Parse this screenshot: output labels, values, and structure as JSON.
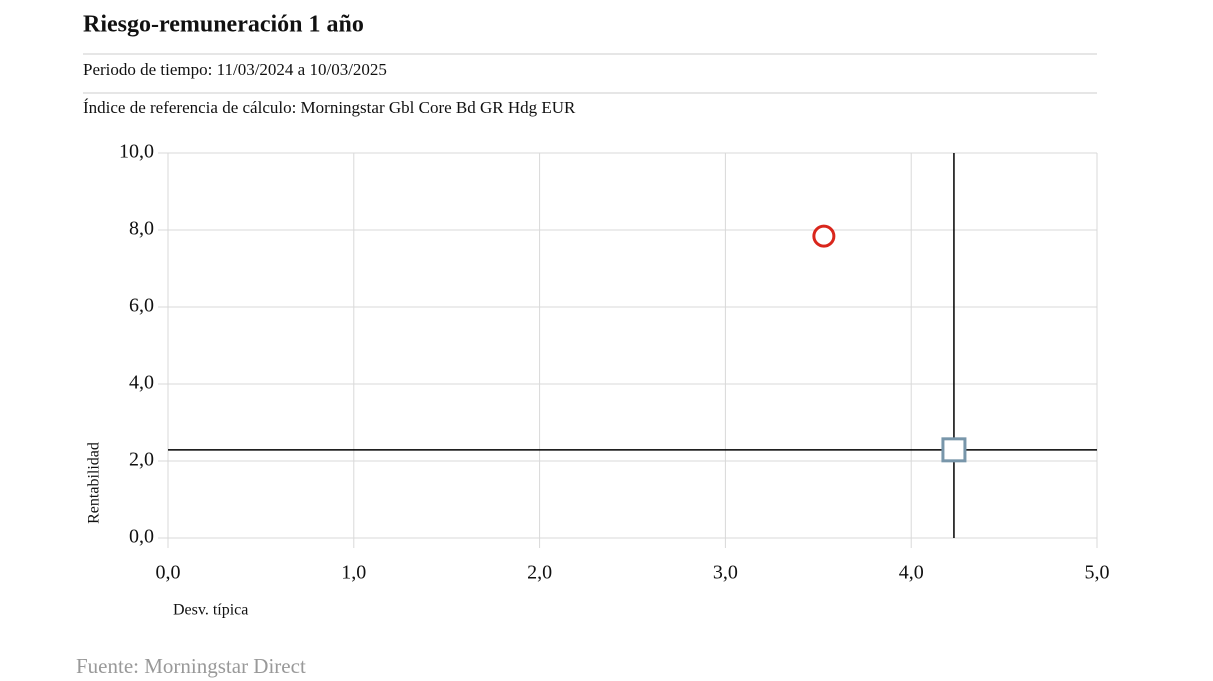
{
  "chart_data": {
    "type": "scatter",
    "title": "Riesgo-remuneración 1 año",
    "subtitle": "Periodo de tiempo: 11/03/2024 a 10/03/2025",
    "benchmark_note": "Índice de referencia de cálculo: Morningstar Gbl Core Bd GR Hdg EUR",
    "x_label": "Desv. típica",
    "y_label": "Rentabilidad",
    "source": "Fuente: Morningstar Direct",
    "xlim": [
      0,
      5
    ],
    "xticks": [
      {
        "value": 0,
        "label": "0,0"
      },
      {
        "value": 1,
        "label": "1,0"
      },
      {
        "value": 2,
        "label": "2,0"
      },
      {
        "value": 3,
        "label": "3,0"
      },
      {
        "value": 4,
        "label": "4,0"
      },
      {
        "value": 5,
        "label": "5,0"
      }
    ],
    "ylim": [
      0,
      10
    ],
    "yticks": [
      {
        "value": 0,
        "label": "0,0"
      },
      {
        "value": 2,
        "label": "2,0"
      },
      {
        "value": 4,
        "label": "4,0"
      },
      {
        "value": 6,
        "label": "6,0"
      },
      {
        "value": 8,
        "label": "8,0"
      },
      {
        "value": 10,
        "label": "10,0"
      }
    ],
    "grid": true,
    "series": [
      {
        "color": "#d9261c",
        "marker": "circle",
        "x": [
          3.53
        ],
        "values": [
          7.84
        ]
      },
      {
        "color": "#7896aa",
        "marker": "square",
        "crosshair": true,
        "x": [
          4.23
        ],
        "values": [
          2.29
        ]
      }
    ]
  }
}
